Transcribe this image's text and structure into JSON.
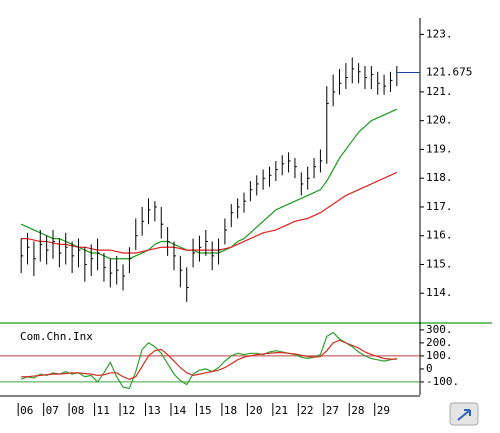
{
  "chart_data": [
    {
      "type": "ohlc",
      "categories": [
        "06",
        null,
        null,
        null,
        "07",
        null,
        null,
        null,
        "08",
        null,
        null,
        null,
        "11",
        null,
        null,
        null,
        "12",
        null,
        null,
        null,
        "13",
        null,
        null,
        null,
        "14",
        null,
        null,
        null,
        "15",
        null,
        null,
        null,
        "18",
        null,
        null,
        null,
        "20",
        null,
        null,
        null,
        "21",
        null,
        null,
        null,
        "22",
        null,
        null,
        null,
        "27",
        null,
        null,
        null,
        "28",
        null,
        null,
        null,
        "29",
        null,
        null,
        null
      ],
      "high": [
        115.9,
        116.1,
        115.8,
        116.2,
        116.0,
        116.2,
        115.9,
        116.1,
        115.8,
        115.9,
        115.6,
        115.7,
        115.9,
        115.4,
        115.2,
        115.3,
        115.0,
        115.6,
        116.6,
        117.0,
        117.3,
        117.2,
        117.0,
        116.3,
        115.8,
        115.3,
        114.9,
        115.9,
        116.0,
        116.2,
        115.8,
        115.9,
        116.6,
        117.1,
        117.3,
        117.5,
        117.9,
        118.1,
        118.3,
        118.4,
        118.6,
        118.8,
        118.9,
        118.7,
        118.2,
        118.4,
        118.7,
        119.0,
        121.2,
        121.6,
        121.8,
        122.0,
        122.2,
        122.0,
        121.9,
        121.9,
        121.7,
        121.6,
        121.7,
        121.9
      ],
      "low": [
        114.7,
        115.0,
        114.6,
        115.1,
        115.0,
        115.2,
        114.9,
        115.0,
        114.7,
        114.9,
        114.4,
        114.6,
        114.8,
        114.4,
        114.2,
        114.3,
        114.1,
        114.7,
        115.5,
        116.0,
        116.4,
        116.5,
        115.9,
        115.3,
        114.8,
        114.2,
        113.7,
        114.9,
        115.1,
        115.3,
        114.8,
        115.0,
        115.7,
        116.3,
        116.6,
        116.8,
        117.2,
        117.4,
        117.6,
        117.7,
        117.9,
        118.1,
        118.2,
        118.0,
        117.4,
        117.6,
        118.0,
        118.2,
        118.5,
        120.5,
        120.9,
        121.1,
        121.3,
        121.3,
        121.1,
        121.1,
        120.9,
        120.9,
        121.0,
        121.2
      ],
      "close": [
        115.3,
        115.6,
        115.2,
        115.7,
        115.5,
        115.8,
        115.4,
        115.6,
        115.3,
        115.5,
        115.0,
        115.2,
        115.4,
        114.9,
        114.7,
        114.8,
        114.6,
        115.2,
        116.0,
        116.5,
        116.9,
        117.0,
        116.4,
        115.8,
        115.3,
        114.8,
        114.2,
        115.4,
        115.6,
        115.8,
        115.3,
        115.5,
        116.2,
        116.8,
        117.0,
        117.2,
        117.6,
        117.8,
        118.0,
        118.1,
        118.3,
        118.5,
        118.6,
        118.4,
        117.8,
        118.0,
        118.4,
        118.6,
        120.6,
        121.0,
        121.3,
        121.5,
        121.8,
        121.7,
        121.5,
        121.6,
        121.3,
        121.2,
        121.4,
        121.675
      ],
      "color": "#000000",
      "overlays": [
        {
          "color": "#1a9a1a",
          "values": [
            116.4,
            116.3,
            116.2,
            116.1,
            116.0,
            115.9,
            115.9,
            115.8,
            115.7,
            115.6,
            115.5,
            115.4,
            115.4,
            115.3,
            115.2,
            115.2,
            115.2,
            115.2,
            115.3,
            115.4,
            115.5,
            115.7,
            115.8,
            115.8,
            115.7,
            115.6,
            115.5,
            115.5,
            115.4,
            115.4,
            115.4,
            115.4,
            115.5,
            115.6,
            115.8,
            115.9,
            116.1,
            116.3,
            116.5,
            116.7,
            116.9,
            117.0,
            117.1,
            117.2,
            117.3,
            117.4,
            117.5,
            117.6,
            117.9,
            118.3,
            118.7,
            119.0,
            119.3,
            119.6,
            119.8,
            120.0,
            120.1,
            120.2,
            120.3,
            120.4
          ]
        },
        {
          "color": "#e02020",
          "values": [
            115.9,
            115.9,
            115.85,
            115.8,
            115.8,
            115.75,
            115.7,
            115.7,
            115.65,
            115.6,
            115.6,
            115.55,
            115.5,
            115.5,
            115.5,
            115.45,
            115.4,
            115.4,
            115.4,
            115.45,
            115.5,
            115.55,
            115.6,
            115.6,
            115.6,
            115.55,
            115.5,
            115.5,
            115.5,
            115.5,
            115.5,
            115.5,
            115.55,
            115.6,
            115.7,
            115.8,
            115.9,
            116.0,
            116.1,
            116.15,
            116.2,
            116.3,
            116.4,
            116.5,
            116.55,
            116.6,
            116.7,
            116.8,
            116.95,
            117.1,
            117.25,
            117.4,
            117.5,
            117.6,
            117.7,
            117.8,
            117.9,
            118.0,
            118.1,
            118.2
          ]
        }
      ],
      "last_price": 121.675,
      "last_color": "#2040a0",
      "ylim": [
        113,
        123.5
      ],
      "yticks": [
        {
          "value": 114,
          "label": "114."
        },
        {
          "value": 115,
          "label": "115."
        },
        {
          "value": 116,
          "label": "116."
        },
        {
          "value": 117,
          "label": "117."
        },
        {
          "value": 118,
          "label": "118."
        },
        {
          "value": 119,
          "label": "119."
        },
        {
          "value": 120,
          "label": "120."
        },
        {
          "value": 121,
          "label": "121."
        },
        {
          "value": 123,
          "label": "123."
        }
      ]
    },
    {
      "type": "line",
      "title": "Com.Chn.Inx",
      "series": [
        {
          "color": "#30a030",
          "values": [
            -80,
            -60,
            -70,
            -40,
            -50,
            -30,
            -40,
            -20,
            -40,
            -30,
            -60,
            -50,
            -100,
            -30,
            50,
            -60,
            -140,
            -150,
            -20,
            150,
            200,
            170,
            120,
            40,
            -40,
            -90,
            -120,
            -40,
            -10,
            0,
            -20,
            10,
            60,
            100,
            120,
            110,
            120,
            120,
            110,
            130,
            140,
            130,
            120,
            110,
            90,
            80,
            90,
            110,
            250,
            280,
            230,
            200,
            170,
            130,
            100,
            80,
            70,
            60,
            70,
            80
          ]
        },
        {
          "color": "#d03020",
          "values": [
            -60,
            -60,
            -55,
            -50,
            -45,
            -40,
            -40,
            -35,
            -30,
            -30,
            -35,
            -40,
            -50,
            -45,
            -30,
            -30,
            -60,
            -80,
            -60,
            20,
            100,
            140,
            150,
            110,
            60,
            10,
            -30,
            -50,
            -40,
            -30,
            -20,
            -10,
            10,
            40,
            70,
            90,
            100,
            110,
            115,
            120,
            125,
            125,
            120,
            115,
            105,
            95,
            90,
            95,
            140,
            200,
            220,
            200,
            180,
            160,
            130,
            110,
            95,
            80,
            75,
            75
          ]
        }
      ],
      "levels": [
        {
          "value": 100,
          "color": "#c04040"
        },
        {
          "value": -100,
          "color": "#40a040"
        }
      ],
      "ylim": [
        -185,
        345
      ],
      "yticks": [
        {
          "value": 300,
          "label": "300."
        },
        {
          "value": 200,
          "label": "200."
        },
        {
          "value": 100,
          "label": "100."
        },
        0,
        {
          "value": -100,
          "label": "-100."
        }
      ]
    }
  ]
}
